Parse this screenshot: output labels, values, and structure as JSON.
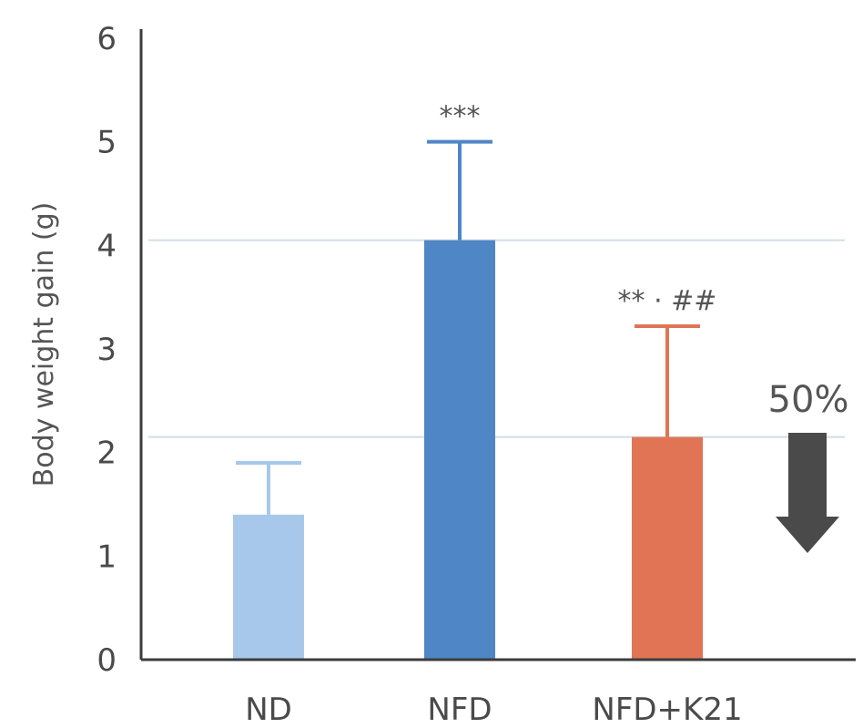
{
  "chart_data": {
    "type": "bar",
    "categories": [
      "ND",
      "NFD",
      "NFD+K21"
    ],
    "values": [
      1.4,
      4.05,
      2.15
    ],
    "error_upper": [
      1.9,
      5.0,
      3.22
    ],
    "colors": [
      "#a7c8ea",
      "#4f86c6",
      "#e07454"
    ],
    "annotations": [
      "",
      "***",
      "** · ##"
    ],
    "ylabel": "Body weight gain (g)",
    "ylim": [
      0,
      6
    ],
    "yticks": [
      0,
      1,
      2,
      3,
      4,
      5,
      6
    ],
    "reference_lines": [
      4.05,
      2.15
    ],
    "callout": {
      "text": "50%",
      "arrow": "down",
      "arrow_color": "#4a4a4a"
    }
  }
}
